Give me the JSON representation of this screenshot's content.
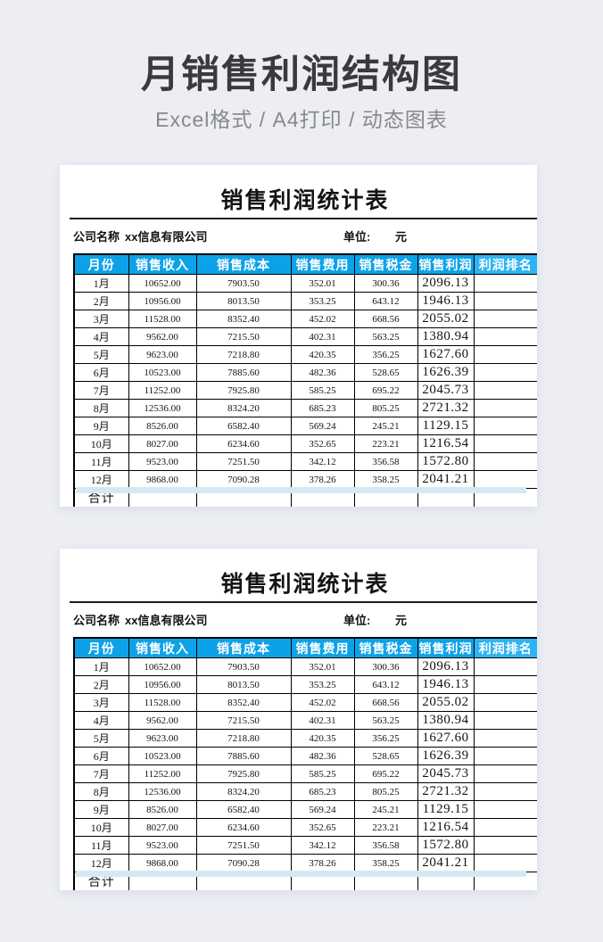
{
  "header": {
    "title": "月销售利润结构图",
    "subtitle": "Excel格式 / A4打印 / 动态图表"
  },
  "sheet": {
    "title": "销售利润统计表",
    "company_label": "公司名称",
    "company_value": "xx信息有限公司",
    "unit_label": "单位:",
    "unit_value": "元",
    "columns": [
      "月份",
      "销售收入",
      "销售成本",
      "销售费用",
      "销售税金",
      "销售利润",
      "利润排名"
    ],
    "rows": [
      [
        "1月",
        "10652.00",
        "7903.50",
        "352.01",
        "300.36",
        "2096.13",
        ""
      ],
      [
        "2月",
        "10956.00",
        "8013.50",
        "353.25",
        "643.12",
        "1946.13",
        ""
      ],
      [
        "3月",
        "11528.00",
        "8352.40",
        "452.02",
        "668.56",
        "2055.02",
        ""
      ],
      [
        "4月",
        "9562.00",
        "7215.50",
        "402.31",
        "563.25",
        "1380.94",
        ""
      ],
      [
        "5月",
        "9623.00",
        "7218.80",
        "420.35",
        "356.25",
        "1627.60",
        ""
      ],
      [
        "6月",
        "10523.00",
        "7885.60",
        "482.36",
        "528.65",
        "1626.39",
        ""
      ],
      [
        "7月",
        "11252.00",
        "7925.80",
        "585.25",
        "695.22",
        "2045.73",
        ""
      ],
      [
        "8月",
        "12536.00",
        "8324.20",
        "685.23",
        "805.25",
        "2721.32",
        ""
      ],
      [
        "9月",
        "8526.00",
        "6582.40",
        "569.24",
        "245.21",
        "1129.15",
        ""
      ],
      [
        "10月",
        "8027.00",
        "6234.60",
        "352.65",
        "223.21",
        "1216.54",
        ""
      ],
      [
        "11月",
        "9523.00",
        "7251.50",
        "342.12",
        "356.58",
        "1572.80",
        ""
      ],
      [
        "12月",
        "9868.00",
        "7090.28",
        "378.26",
        "358.25",
        "2041.21",
        ""
      ]
    ],
    "total_label": "合计"
  },
  "colors": {
    "header_blue": "#0da2e8",
    "header_blue_light": "#2fb4f2",
    "page_background": "#eceef4",
    "strip_blue": "#d6e9f3",
    "title_text": "#3a3a3e",
    "subtitle_text": "#86888c"
  }
}
